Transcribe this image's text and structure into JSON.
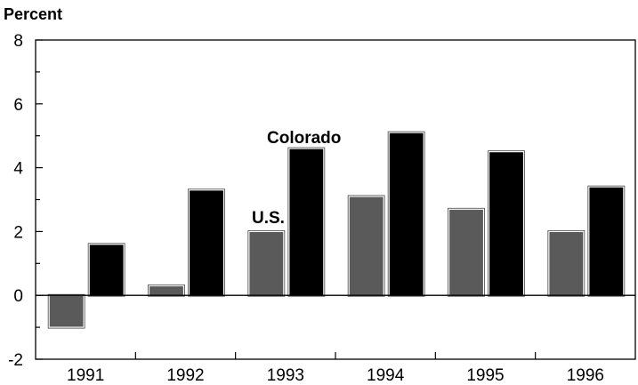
{
  "chart_data": {
    "type": "bar",
    "categories": [
      "1991",
      "1992",
      "1993",
      "1994",
      "1995",
      "1996"
    ],
    "series": [
      {
        "name": "U.S.",
        "values": [
          -1.0,
          0.3,
          2.0,
          3.1,
          2.7,
          2.0
        ],
        "color": "#5a5a5a"
      },
      {
        "name": "Colorado",
        "values": [
          1.6,
          3.3,
          4.6,
          5.1,
          4.5,
          3.4
        ],
        "color": "#000000"
      }
    ],
    "ylabel": "Percent",
    "xlabel": "",
    "title": "",
    "ylim": [
      -2,
      8
    ],
    "yticks": [
      "8",
      "6",
      "4",
      "2",
      "0",
      "-2"
    ],
    "ytick_values": [
      8,
      6,
      4,
      2,
      0,
      -2
    ],
    "grid": false
  }
}
